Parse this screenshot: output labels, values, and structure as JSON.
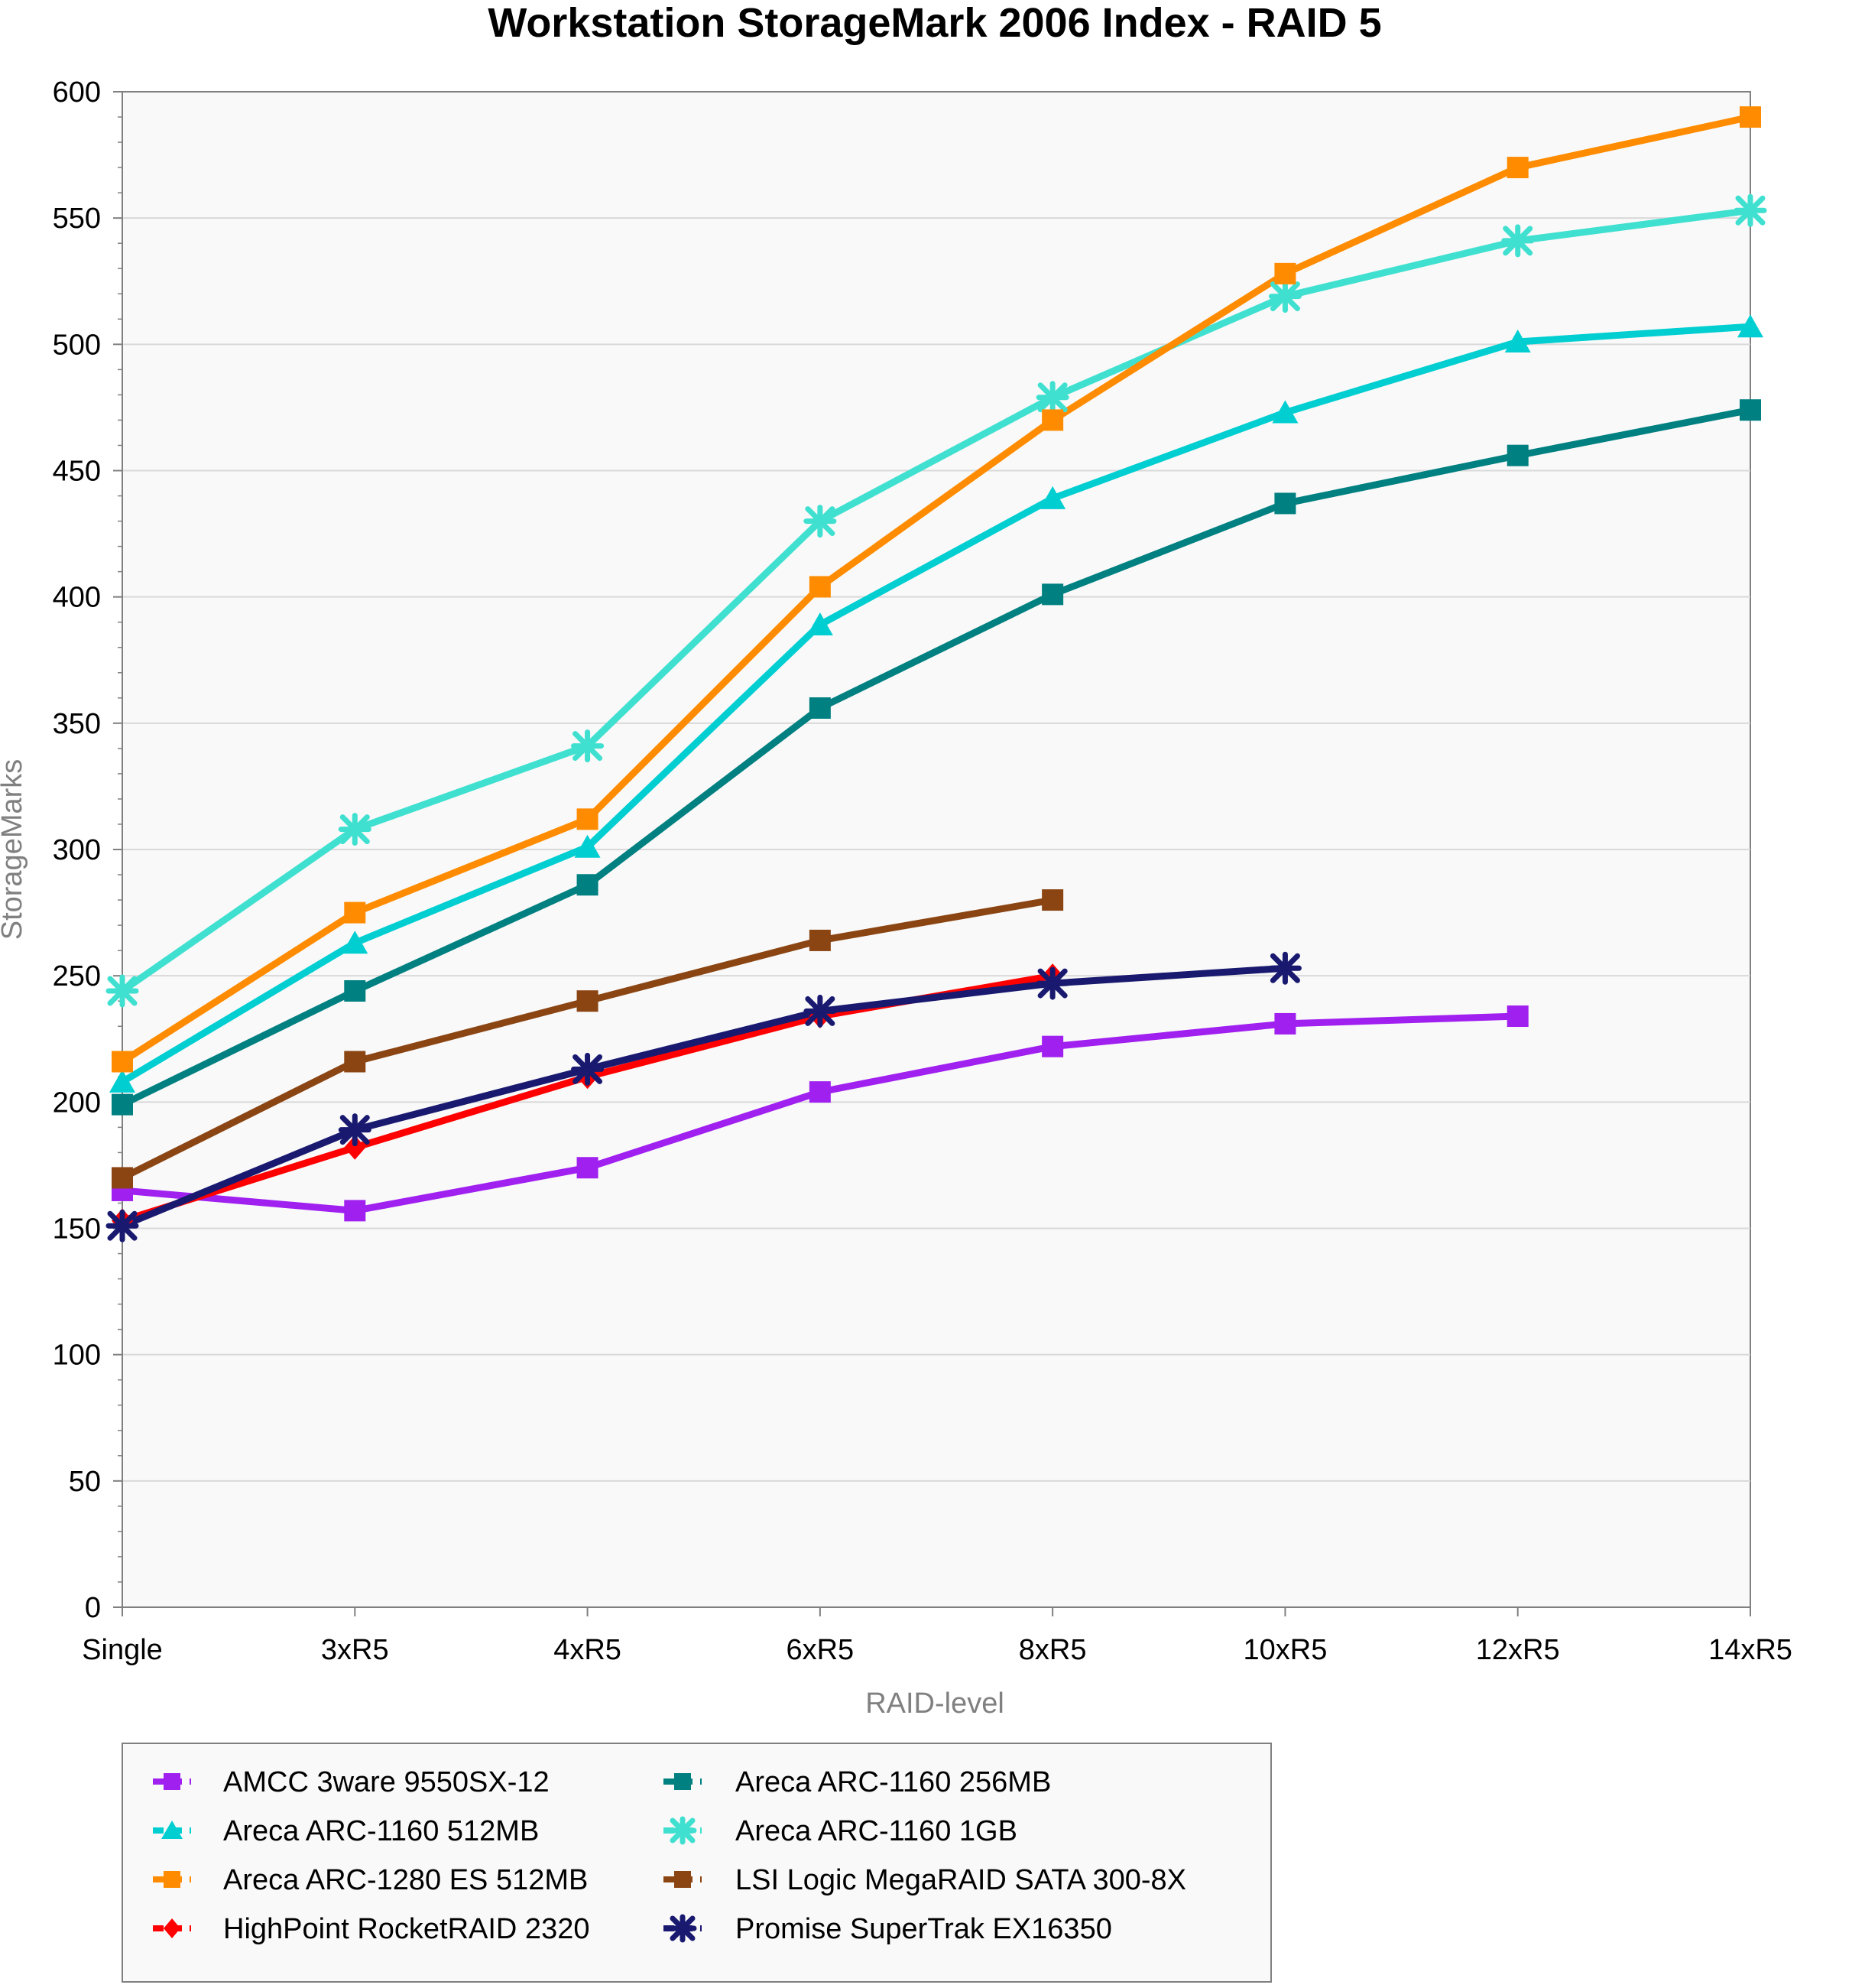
{
  "chart_data": {
    "type": "line",
    "title": "Workstation StorageMark 2006 Index - RAID 5",
    "xlabel": "RAID-level",
    "ylabel": "StorageMarks",
    "categories": [
      "Single",
      "3xR5",
      "4xR5",
      "6xR5",
      "8xR5",
      "10xR5",
      "12xR5",
      "14xR5"
    ],
    "ylim": [
      0,
      600
    ],
    "yticks": [
      0,
      50,
      100,
      150,
      200,
      250,
      300,
      350,
      400,
      450,
      500,
      550,
      600
    ],
    "grid": "horizontal",
    "legend_position": "bottom",
    "series": [
      {
        "name": "AMCC 3ware 9550SX-12",
        "color": "#A020F0",
        "marker": "square",
        "values": [
          165,
          157,
          174,
          204,
          222,
          231,
          234,
          null
        ]
      },
      {
        "name": "Areca ARC-1160 256MB",
        "color": "#008080",
        "marker": "square",
        "values": [
          199,
          244,
          286,
          356,
          401,
          437,
          456,
          474
        ]
      },
      {
        "name": "Areca ARC-1160 512MB",
        "color": "#00CED1",
        "marker": "triangle",
        "values": [
          208,
          263,
          301,
          389,
          439,
          473,
          501,
          507
        ]
      },
      {
        "name": "Areca ARC-1160 1GB",
        "color": "#40E0D0",
        "marker": "asterisk",
        "values": [
          244,
          308,
          341,
          430,
          479,
          519,
          541,
          553
        ]
      },
      {
        "name": "Areca ARC-1280 ES 512MB",
        "color": "#FF8C00",
        "marker": "square",
        "values": [
          216,
          275,
          312,
          404,
          470,
          528,
          570,
          590
        ]
      },
      {
        "name": "LSI Logic MegaRAID SATA 300-8X",
        "color": "#8B4513",
        "marker": "square",
        "values": [
          170,
          216,
          240,
          264,
          280,
          null,
          null,
          null
        ]
      },
      {
        "name": "HighPoint RocketRAID 2320",
        "color": "#FF0000",
        "marker": "diamond",
        "values": [
          153,
          182,
          210,
          234,
          250,
          null,
          null,
          null
        ]
      },
      {
        "name": "Promise SuperTrak EX16350",
        "color": "#191970",
        "marker": "asterisk",
        "values": [
          151,
          189,
          213,
          236,
          247,
          253,
          null,
          null
        ]
      }
    ]
  }
}
